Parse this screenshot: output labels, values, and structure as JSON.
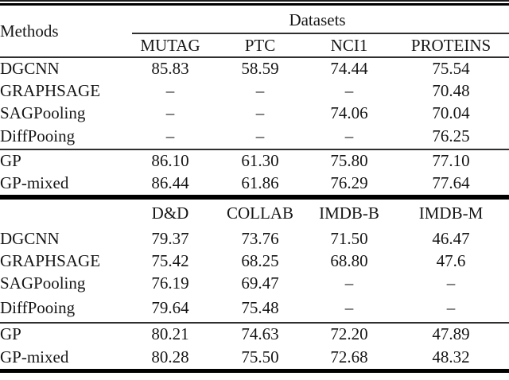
{
  "page": {
    "background_color": "#ffffff",
    "text_color": "#161616",
    "thick_rule_color": "#000000",
    "thin_rule_color": "#2f2f2f"
  },
  "table": {
    "methods_header": "Methods",
    "datasets_header": "Datasets",
    "missing_value_symbol": "–",
    "blocks": [
      {
        "columns": [
          "MUTAG",
          "PTC",
          "NCI1",
          "PROTEINS"
        ],
        "rows": [
          {
            "method": "DGCNN",
            "values": [
              "85.83",
              "58.59",
              "74.44",
              "75.54"
            ],
            "bold": [
              false,
              false,
              false,
              false
            ]
          },
          {
            "method": "GRAPHSAGE",
            "values": [
              "–",
              "–",
              "–",
              "70.48"
            ],
            "bold": [
              false,
              false,
              false,
              false
            ]
          },
          {
            "method": "SAGPooling",
            "values": [
              "–",
              "–",
              "74.06",
              "70.04"
            ],
            "bold": [
              false,
              false,
              false,
              false
            ]
          },
          {
            "method": "DiffPooing",
            "values": [
              "–",
              "–",
              "–",
              "76.25"
            ],
            "bold": [
              false,
              false,
              false,
              false
            ]
          },
          {
            "method": "GP",
            "values": [
              "86.10",
              "61.30",
              "75.80",
              "77.10"
            ],
            "bold": [
              true,
              true,
              false,
              true
            ]
          },
          {
            "method": "GP-mixed",
            "values": [
              "86.44",
              "61.86",
              "76.29",
              "77.64"
            ],
            "bold": [
              true,
              true,
              true,
              true
            ]
          }
        ]
      },
      {
        "columns": [
          "D&D",
          "COLLAB",
          "IMDB-B",
          "IMDB-M"
        ],
        "rows": [
          {
            "method": "DGCNN",
            "values": [
              "79.37",
              "73.76",
              "71.50",
              "46.47"
            ],
            "bold": [
              false,
              false,
              false,
              false
            ]
          },
          {
            "method": "GRAPHSAGE",
            "values": [
              "75.42",
              "68.25",
              "68.80",
              "47.6"
            ],
            "bold": [
              false,
              false,
              false,
              false
            ]
          },
          {
            "method": "SAGPooling",
            "values": [
              "76.19",
              "69.47",
              "–",
              "–"
            ],
            "bold": [
              false,
              false,
              false,
              false
            ]
          },
          {
            "method": "DiffPooing",
            "values": [
              "79.64",
              "75.48",
              "–",
              "–"
            ],
            "bold": [
              false,
              true,
              false,
              false
            ]
          },
          {
            "method": "GP",
            "values": [
              "80.21",
              "74.63",
              "72.20",
              "47.89"
            ],
            "bold": [
              true,
              false,
              true,
              true
            ]
          },
          {
            "method": "GP-mixed",
            "values": [
              "80.28",
              "75.50",
              "72.68",
              "48.32"
            ],
            "bold": [
              true,
              true,
              true,
              true
            ]
          }
        ]
      }
    ]
  }
}
